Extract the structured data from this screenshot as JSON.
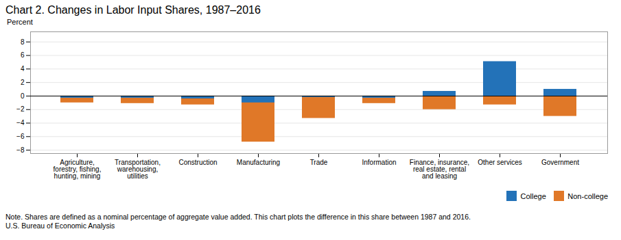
{
  "chart_data": {
    "type": "bar",
    "title": "Chart 2. Changes in Labor Input Shares, 1987–2016",
    "ylabel": "Percent",
    "categories": [
      "Agriculture,\nforestry, fishing,\nhunting, mining",
      "Transportation,\nwarehousing,\nutilities",
      "Construction",
      "Manufacturing",
      "Trade",
      "Information",
      "Finance, insurance,\nreal estate, rental\nand leasing",
      "Other services",
      "Government"
    ],
    "series": [
      {
        "name": "College",
        "color": "#2372b8",
        "values": [
          -0.3,
          -0.3,
          -0.4,
          -1.0,
          -0.2,
          -0.3,
          0.7,
          5.1,
          1.0
        ]
      },
      {
        "name": "Non-college",
        "color": "#e07828",
        "values": [
          -1.0,
          -1.1,
          -1.3,
          -6.8,
          -3.3,
          -1.1,
          -2.0,
          -1.3,
          -3.0
        ]
      }
    ],
    "ylim": [
      -8.5,
      9.5
    ],
    "yticks": [
      -8,
      -6,
      -4,
      -2,
      0,
      2,
      4,
      6,
      8
    ],
    "grid": true,
    "legend": "lower right",
    "note": "Note. Shares are defined as a nominal percentage of aggregate value added. This chart plots the difference in this share between 1987 and 2016.",
    "source": "U.S. Bureau of Economic Analysis"
  }
}
